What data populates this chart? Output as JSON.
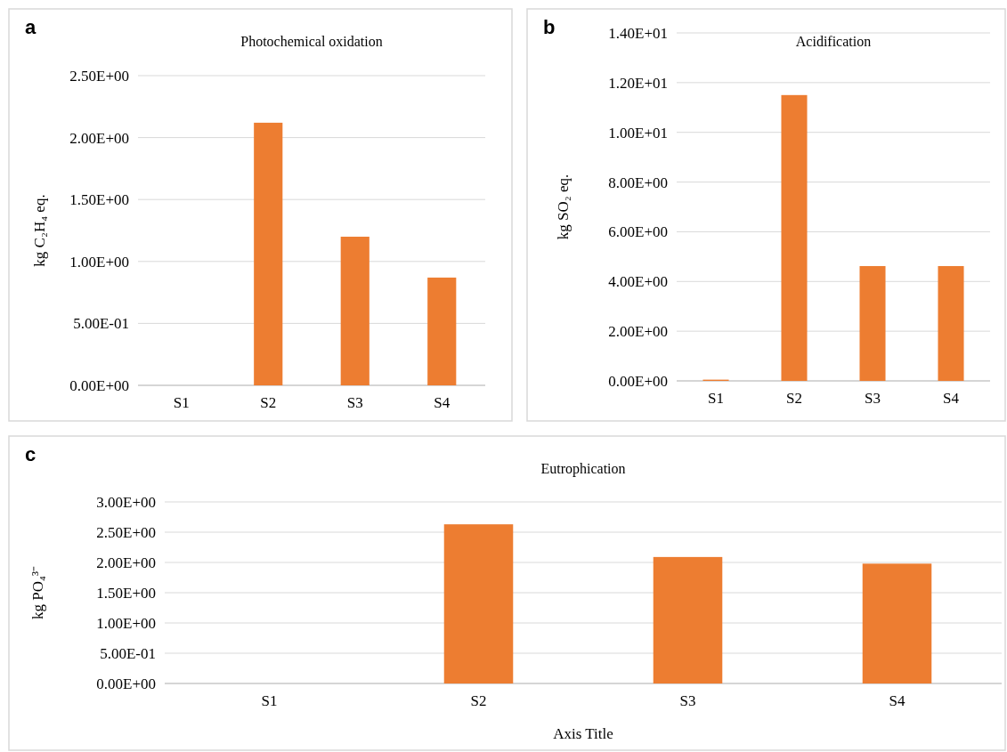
{
  "chart_data": [
    {
      "type": "bar",
      "title": "Photochemical oxidation",
      "ylabel": "kg C₂H₄ eq.",
      "annotations": [
        "a"
      ],
      "categories": [
        "S1",
        "S2",
        "S3",
        "S4"
      ],
      "values": [
        0,
        2.12,
        1.2,
        0.87
      ],
      "color": "#ed7d31",
      "ylim": [
        0,
        2.5
      ],
      "yticks": [
        {
          "value": 0,
          "label": "0.00E+00"
        },
        {
          "value": 0.5,
          "label": "5.00E-01"
        },
        {
          "value": 1,
          "label": "1.00E+00"
        },
        {
          "value": 1.5,
          "label": "1.50E+00"
        },
        {
          "value": 2,
          "label": "2.00E+00"
        },
        {
          "value": 2.5,
          "label": "2.50E+00"
        }
      ],
      "grid": "y"
    },
    {
      "type": "bar",
      "title": "Acidification",
      "ylabel": "kg SO₂ eq.",
      "annotations": [
        "b"
      ],
      "categories": [
        "S1",
        "S2",
        "S3",
        "S4"
      ],
      "values": [
        0.05,
        11.5,
        4.62,
        4.62
      ],
      "color": "#ed7d31",
      "ylim": [
        0,
        14
      ],
      "yticks": [
        {
          "value": 0,
          "label": "0.00E+00"
        },
        {
          "value": 2,
          "label": "2.00E+00"
        },
        {
          "value": 4,
          "label": "4.00E+00"
        },
        {
          "value": 6,
          "label": "6.00E+00"
        },
        {
          "value": 8,
          "label": "8.00E+00"
        },
        {
          "value": 10,
          "label": "1.00E+01"
        },
        {
          "value": 12,
          "label": "1.20E+01"
        },
        {
          "value": 14,
          "label": "1.40E+01"
        }
      ],
      "grid": "y"
    },
    {
      "type": "bar",
      "title": "Eutrophication",
      "ylabel": "kg PO₄³⁻",
      "xlabel": "Axis Title",
      "annotations": [
        "c"
      ],
      "categories": [
        "S1",
        "S2",
        "S3",
        "S4"
      ],
      "values": [
        0,
        2.63,
        2.09,
        1.98
      ],
      "color": "#ed7d31",
      "ylim": [
        0,
        3
      ],
      "yticks": [
        {
          "value": 0,
          "label": "0.00E+00"
        },
        {
          "value": 0.5,
          "label": "5.00E-01"
        },
        {
          "value": 1,
          "label": "1.00E+00"
        },
        {
          "value": 1.5,
          "label": "1.50E+00"
        },
        {
          "value": 2,
          "label": "2.00E+00"
        },
        {
          "value": 2.5,
          "label": "2.50E+00"
        },
        {
          "value": 3,
          "label": "3.00E+00"
        }
      ],
      "grid": "y"
    }
  ]
}
